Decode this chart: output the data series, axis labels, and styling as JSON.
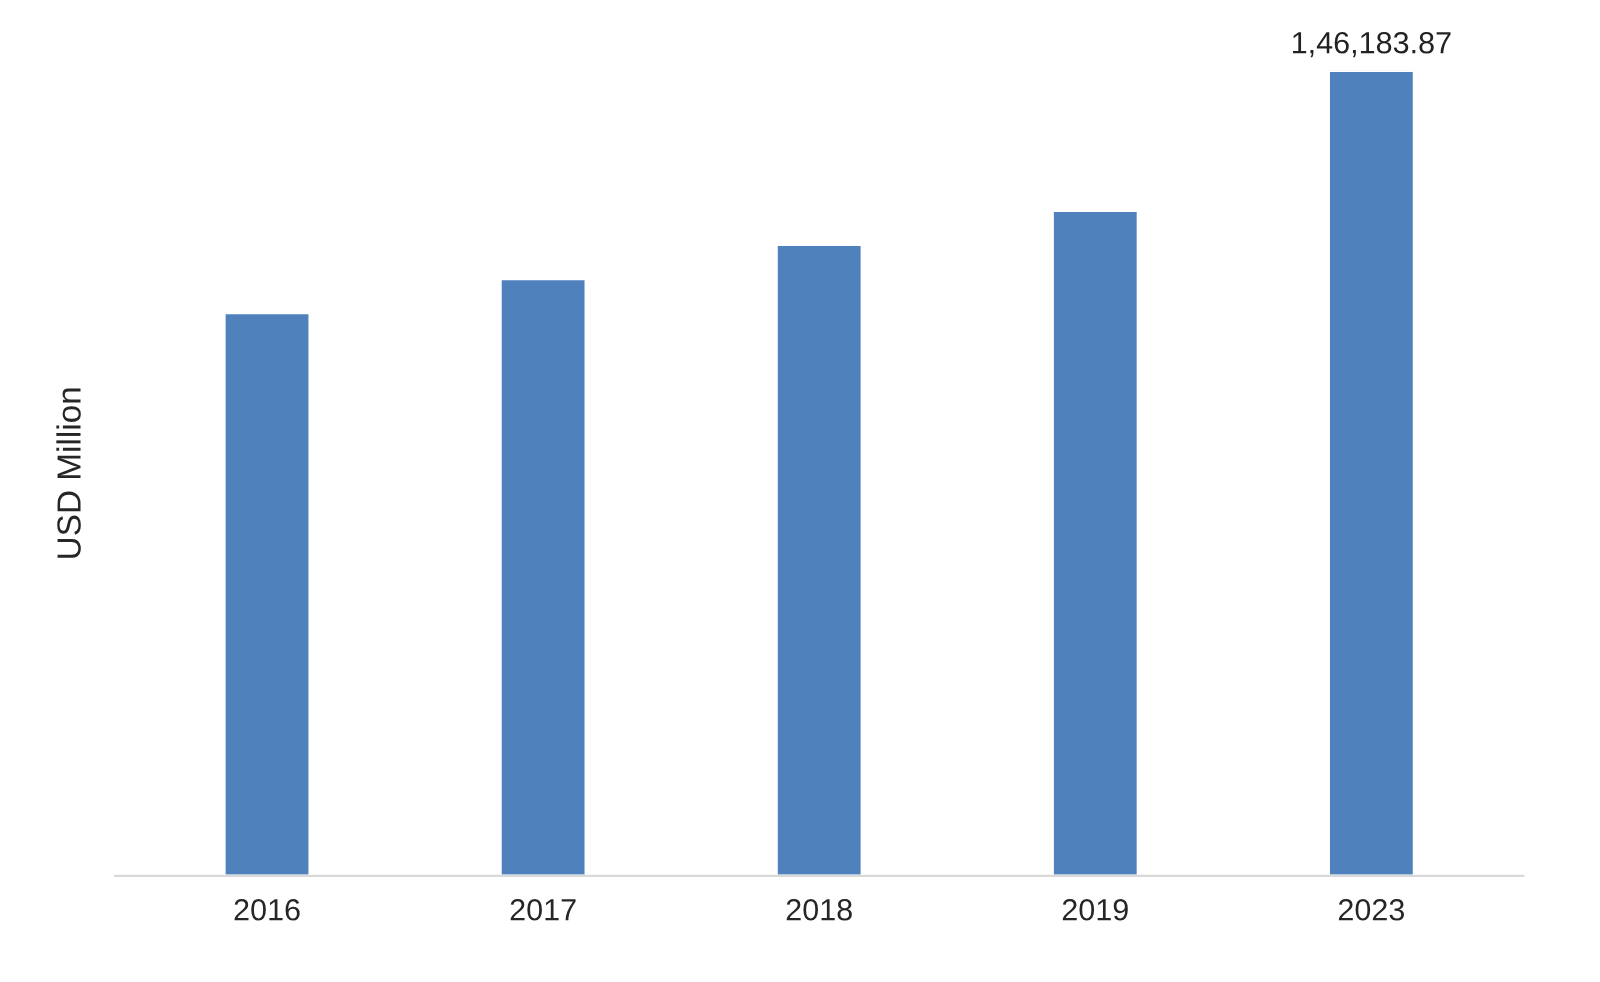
{
  "chart_data": {
    "type": "bar",
    "ylabel": "USD Million",
    "categories": [
      "2016",
      "2017",
      "2018",
      "2019",
      "2023"
    ],
    "values": [
      102200,
      108400,
      114600,
      120800,
      146183.87
    ],
    "value_labels": [
      null,
      null,
      null,
      null,
      "1,46,183.87"
    ],
    "color": "#4f81bd",
    "grid": false,
    "tick_labels": "x"
  }
}
